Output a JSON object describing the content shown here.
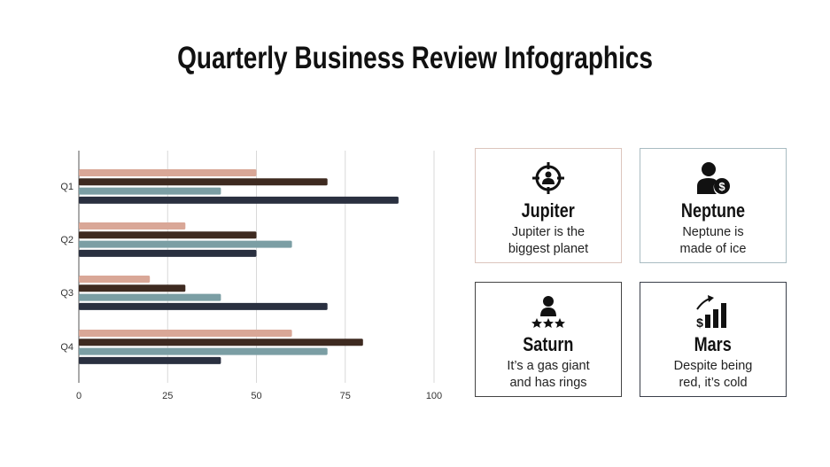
{
  "title": "Quarterly Business Review Infographics",
  "chart_data": {
    "type": "bar",
    "orientation": "horizontal",
    "categories": [
      "Q1",
      "Q2",
      "Q3",
      "Q4"
    ],
    "series": [
      {
        "values": [
          50,
          30,
          20,
          60
        ],
        "color": "#d9a797"
      },
      {
        "values": [
          70,
          50,
          30,
          80
        ],
        "color": "#3e2a20"
      },
      {
        "values": [
          40,
          60,
          40,
          70
        ],
        "color": "#7b9ea4"
      },
      {
        "values": [
          90,
          50,
          70,
          40
        ],
        "color": "#2a3040"
      }
    ],
    "xlim": [
      0,
      100
    ],
    "xticks": [
      "0",
      "25",
      "50",
      "75",
      "100"
    ],
    "grid": true
  },
  "cards": [
    {
      "name": "Jupiter",
      "desc1": "Jupiter is the",
      "desc2": "biggest planet",
      "icon": "target-user-icon",
      "border": "#dcc5bd"
    },
    {
      "name": "Neptune",
      "desc1": "Neptune is",
      "desc2": "made of ice",
      "icon": "user-dollar-icon",
      "border": "#a9bcc2"
    },
    {
      "name": "Saturn",
      "desc1": "It’s a gas giant",
      "desc2": "and has rings",
      "icon": "user-rating-icon",
      "border": "#444444"
    },
    {
      "name": "Mars",
      "desc1": "Despite being",
      "desc2": "red, it’s cold",
      "icon": "dollar-growth-icon",
      "border": "#3a3f4a"
    }
  ]
}
